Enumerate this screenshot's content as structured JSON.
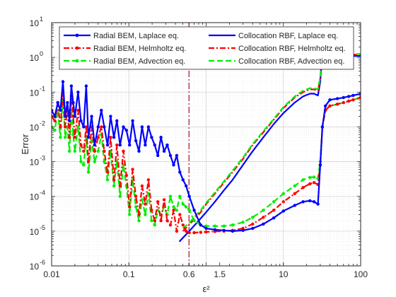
{
  "chart_data": {
    "type": "line",
    "xlabel": "ε²",
    "ylabel": "Error",
    "xscale": "log",
    "yscale": "log",
    "xlim": [
      0.01,
      100
    ],
    "ylim": [
      1e-06,
      10
    ],
    "grid": true,
    "legend_placement": "top",
    "x_ticks": [
      {
        "value": 0.01,
        "label": "0.01"
      },
      {
        "value": 0.1,
        "label": "0.1"
      },
      {
        "value": 0.6,
        "label": "0.6"
      },
      {
        "value": 1.5,
        "label": "1.5"
      },
      {
        "value": 10,
        "label": "10"
      },
      {
        "value": 100,
        "label": "100"
      }
    ],
    "y_ticks": [
      {
        "value": 1e-06,
        "base": "10",
        "exp": "-6"
      },
      {
        "value": 1e-05,
        "base": "10",
        "exp": "-5"
      },
      {
        "value": 0.0001,
        "base": "10",
        "exp": "-4"
      },
      {
        "value": 0.001,
        "base": "10",
        "exp": "-3"
      },
      {
        "value": 0.01,
        "base": "10",
        "exp": "-2"
      },
      {
        "value": 0.1,
        "base": "10",
        "exp": "-1"
      },
      {
        "value": 1,
        "base": "10",
        "exp": "0"
      },
      {
        "value": 10,
        "base": "10",
        "exp": "1"
      }
    ],
    "vertical_reference_x": 0.6,
    "series": [
      {
        "name": "Radial BEM, Laplace eq.",
        "color": "#0000ff",
        "dash": "solid",
        "marker": true,
        "x": [
          0.01,
          0.011,
          0.012,
          0.013,
          0.014,
          0.015,
          0.016,
          0.017,
          0.018,
          0.019,
          0.02,
          0.022,
          0.024,
          0.026,
          0.028,
          0.03,
          0.033,
          0.036,
          0.04,
          0.044,
          0.048,
          0.053,
          0.058,
          0.064,
          0.07,
          0.077,
          0.085,
          0.093,
          0.102,
          0.112,
          0.123,
          0.135,
          0.148,
          0.163,
          0.179,
          0.197,
          0.216,
          0.237,
          0.26,
          0.286,
          0.314,
          0.345,
          0.379,
          0.416,
          0.457,
          0.502,
          0.551,
          0.605,
          0.7,
          0.85,
          1.0,
          1.3,
          1.7,
          2.2,
          3.0,
          4.0,
          5.5,
          7.5,
          10,
          14,
          18,
          22,
          25,
          28,
          30,
          32,
          35,
          40,
          50,
          60,
          70,
          80,
          100
        ],
        "y": [
          0.03,
          0.02,
          0.05,
          0.03,
          0.2,
          0.02,
          0.05,
          0.015,
          0.15,
          0.05,
          0.02,
          0.1,
          0.015,
          0.01,
          0.15,
          0.005,
          0.02,
          0.003,
          0.01,
          0.03,
          0.01,
          0.003,
          0.02,
          0.005,
          0.015,
          0.003,
          0.01,
          0.008,
          0.003,
          0.015,
          0.004,
          0.002,
          0.01,
          0.003,
          0.01,
          0.005,
          0.003,
          0.0015,
          0.005,
          0.002,
          0.003,
          0.0015,
          0.0008,
          0.0015,
          0.0005,
          0.0003,
          0.0002,
          0.0001,
          4e-05,
          1.5e-05,
          1.2e-05,
          1.1e-05,
          1.05e-05,
          1e-05,
          1.05e-05,
          1.2e-05,
          1.6e-05,
          2.4e-05,
          3.8e-05,
          5.5e-05,
          7e-05,
          7.5e-05,
          7e-05,
          6e-05,
          0.0008,
          0.01,
          0.04,
          0.06,
          0.065,
          0.07,
          0.075,
          0.08,
          0.09
        ]
      },
      {
        "name": "Radial BEM, Helmholtz eq.",
        "color": "#ff0000",
        "dash": "dashdot",
        "marker": true,
        "x": [
          0.01,
          0.011,
          0.012,
          0.013,
          0.014,
          0.015,
          0.016,
          0.017,
          0.018,
          0.019,
          0.02,
          0.022,
          0.024,
          0.026,
          0.028,
          0.03,
          0.033,
          0.036,
          0.04,
          0.044,
          0.048,
          0.053,
          0.058,
          0.064,
          0.07,
          0.077,
          0.085,
          0.093,
          0.102,
          0.112,
          0.123,
          0.135,
          0.148,
          0.163,
          0.179,
          0.197,
          0.216,
          0.237,
          0.26,
          0.286,
          0.314,
          0.345,
          0.379,
          0.416,
          0.457,
          0.502,
          0.551,
          0.605,
          0.7,
          0.85,
          1.0,
          1.3,
          1.7,
          2.2,
          3.0,
          4.0,
          5.5,
          7.5,
          10,
          14,
          18,
          22,
          25,
          28,
          30,
          32,
          35,
          40,
          50,
          60,
          70,
          80,
          100
        ],
        "y": [
          0.02,
          0.015,
          0.05,
          0.01,
          0.1,
          0.01,
          0.03,
          0.005,
          0.08,
          0.02,
          0.005,
          0.03,
          0.003,
          0.002,
          0.01,
          0.001,
          0.01,
          0.002,
          0.005,
          0.01,
          0.002,
          0.0005,
          0.005,
          0.0003,
          0.003,
          0.0002,
          0.002,
          0.0004,
          5e-05,
          0.0006,
          0.0001,
          3e-05,
          0.0002,
          6e-05,
          0.0003,
          4e-05,
          2e-05,
          7e-05,
          2e-05,
          8e-05,
          2e-05,
          1.5e-05,
          4e-05,
          1e-05,
          3e-05,
          1.5e-05,
          1e-05,
          9e-06,
          9e-06,
          9.2e-06,
          9.5e-06,
          9.8e-06,
          1e-05,
          1.05e-05,
          1.2e-05,
          1.6e-05,
          2.5e-05,
          4e-05,
          7e-05,
          0.00012,
          0.00018,
          0.00023,
          0.00025,
          0.00022,
          0.0008,
          0.01,
          0.03,
          0.04,
          0.045,
          0.05,
          0.055,
          0.06,
          0.07
        ]
      },
      {
        "name": "Radial BEM, Advection eq.",
        "color": "#00ee00",
        "dash": "dash",
        "marker": true,
        "x": [
          0.01,
          0.011,
          0.012,
          0.013,
          0.014,
          0.015,
          0.016,
          0.017,
          0.018,
          0.019,
          0.02,
          0.022,
          0.024,
          0.026,
          0.028,
          0.03,
          0.033,
          0.036,
          0.04,
          0.044,
          0.048,
          0.053,
          0.058,
          0.064,
          0.07,
          0.077,
          0.085,
          0.093,
          0.102,
          0.112,
          0.123,
          0.135,
          0.148,
          0.163,
          0.179,
          0.197,
          0.216,
          0.237,
          0.26,
          0.286,
          0.314,
          0.345,
          0.379,
          0.416,
          0.457,
          0.502,
          0.551,
          0.605,
          0.7,
          0.85,
          1.0,
          1.3,
          1.7,
          2.2,
          3.0,
          4.0,
          5.5,
          7.5,
          10,
          14,
          18,
          22,
          25,
          28,
          30,
          32,
          35,
          40,
          50,
          60,
          70,
          80,
          100
        ],
        "y": [
          0.01,
          0.008,
          0.03,
          0.005,
          0.06,
          0.005,
          0.01,
          0.002,
          0.03,
          0.006,
          0.002,
          0.01,
          0.001,
          0.0008,
          0.005,
          0.0005,
          0.004,
          0.001,
          0.002,
          0.006,
          0.001,
          0.0003,
          0.002,
          0.0002,
          0.001,
          0.0001,
          0.0008,
          0.0002,
          3e-05,
          0.0003,
          5e-05,
          2e-05,
          8e-05,
          3e-05,
          0.00012,
          2e-05,
          1.5e-05,
          4e-05,
          3e-05,
          5e-05,
          3e-05,
          0.0001,
          5e-05,
          4e-05,
          0.0001,
          6e-05,
          5e-05,
          4e-05,
          2e-05,
          1.5e-05,
          1.4e-05,
          1.4e-05,
          1.4e-05,
          1.5e-05,
          1.8e-05,
          2.5e-05,
          4e-05,
          7e-05,
          0.00012,
          0.0002,
          0.0003,
          0.00035,
          0.00036,
          0.00033,
          0.001,
          0.01,
          0.03,
          0.04,
          0.045,
          0.05,
          0.055,
          0.06,
          0.07
        ]
      },
      {
        "name": "Collocation RBF, Laplace eq.",
        "color": "#0000ff",
        "dash": "solid",
        "marker": false,
        "x": [
          0.45,
          0.55,
          0.65,
          0.8,
          1.0,
          1.3,
          1.7,
          2.2,
          3.0,
          4.0,
          5.5,
          7.5,
          10,
          14,
          18,
          22,
          25,
          28,
          30,
          32,
          35,
          40,
          50,
          60,
          70,
          80,
          100
        ],
        "y": [
          5e-06,
          8e-06,
          1.2e-05,
          2e-05,
          3.5e-05,
          7e-05,
          0.00015,
          0.0003,
          0.0008,
          0.002,
          0.005,
          0.012,
          0.025,
          0.05,
          0.075,
          0.09,
          0.09,
          0.08,
          0.2,
          1.5,
          5.0,
          5.0,
          4.0,
          2.0,
          1.2,
          1.1,
          1.1
        ]
      },
      {
        "name": "Collocation RBF, Helmholtz eq.",
        "color": "#ff0000",
        "dash": "dashdot",
        "marker": false,
        "x": [
          0.5,
          0.6,
          0.7,
          0.85,
          1.0,
          1.3,
          1.7,
          2.2,
          3.0,
          4.0,
          5.5,
          7.5,
          10,
          14,
          18,
          22,
          25,
          28,
          30,
          32,
          35,
          40,
          50,
          60,
          70,
          80,
          100
        ],
        "y": [
          1e-05,
          1.5e-05,
          2.2e-05,
          3.5e-05,
          6e-05,
          0.00012,
          0.00025,
          0.0005,
          0.0012,
          0.003,
          0.007,
          0.016,
          0.035,
          0.07,
          0.1,
          0.12,
          0.12,
          0.11,
          0.25,
          1.8,
          5.0,
          5.0,
          4.0,
          2.2,
          1.3,
          1.2,
          1.2
        ]
      },
      {
        "name": "Collocation RBF, Advection eq.",
        "color": "#00ee00",
        "dash": "dash",
        "marker": false,
        "x": [
          0.5,
          0.6,
          0.7,
          0.85,
          1.0,
          1.3,
          1.7,
          2.2,
          3.0,
          4.0,
          5.5,
          7.5,
          10,
          14,
          18,
          22,
          25,
          28,
          30,
          32,
          35,
          40,
          50,
          60,
          70,
          80,
          100
        ],
        "y": [
          1.2e-05,
          1.7e-05,
          2.5e-05,
          4e-05,
          6.5e-05,
          0.00013,
          0.00027,
          0.00055,
          0.0013,
          0.0032,
          0.0075,
          0.017,
          0.037,
          0.075,
          0.11,
          0.13,
          0.13,
          0.12,
          0.27,
          2.0,
          5.0,
          5.0,
          4.0,
          2.2,
          1.3,
          1.25,
          1.25
        ]
      }
    ]
  }
}
